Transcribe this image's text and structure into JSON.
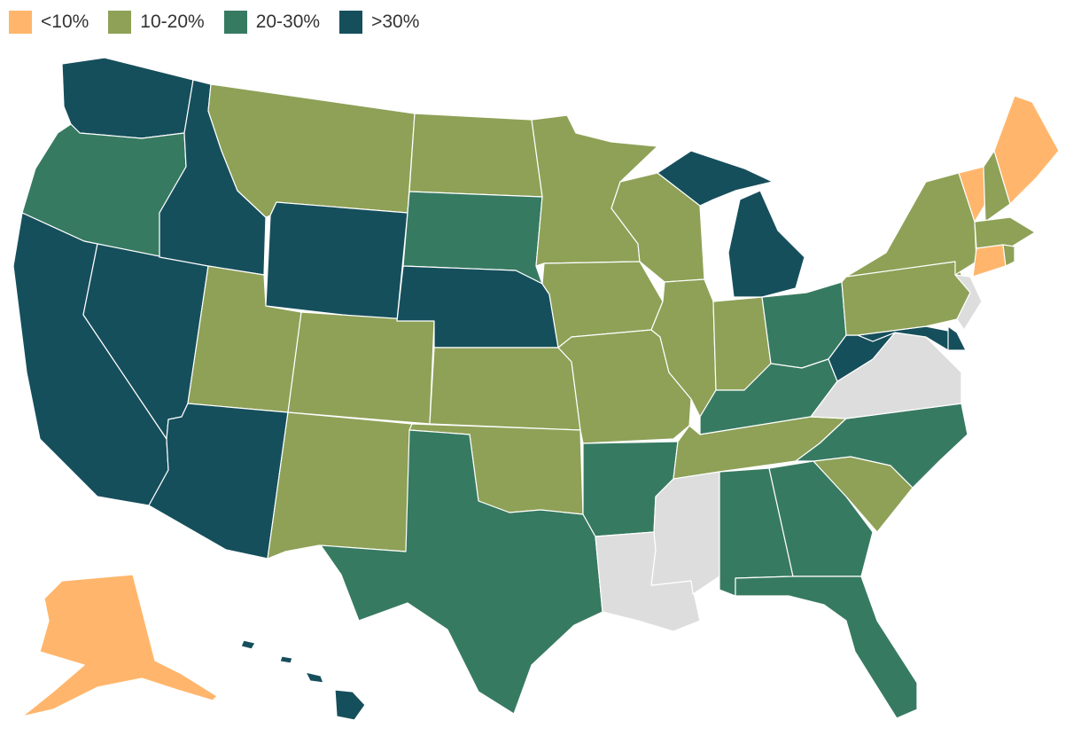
{
  "legend": {
    "items": [
      {
        "key": "lt10",
        "label": "<10%",
        "color": "#ffb66c"
      },
      {
        "key": "10-20",
        "label": "10-20%",
        "color": "#8ea157"
      },
      {
        "key": "20-30",
        "label": "20-30%",
        "color": "#377a62"
      },
      {
        "key": "gt30",
        "label": ">30%",
        "color": "#164f5c"
      }
    ],
    "no_data_color": "#dddddd"
  },
  "states": {
    "WA": "gt30",
    "OR": "20-30",
    "CA": "gt30",
    "NV": "gt30",
    "ID": "gt30",
    "MT": "10-20",
    "WY": "gt30",
    "UT": "10-20",
    "AZ": "gt30",
    "CO": "10-20",
    "NM": "10-20",
    "ND": "10-20",
    "SD": "20-30",
    "NE": "gt30",
    "KS": "10-20",
    "OK": "10-20",
    "TX": "20-30",
    "MN": "10-20",
    "IA": "10-20",
    "MO": "10-20",
    "AR": "20-30",
    "LA": "none",
    "WI": "10-20",
    "IL": "10-20",
    "MI": "gt30",
    "IN": "10-20",
    "OH": "20-30",
    "KY": "20-30",
    "TN": "10-20",
    "MS": "none",
    "AL": "20-30",
    "GA": "20-30",
    "FL": "20-30",
    "SC": "10-20",
    "NC": "20-30",
    "VA": "none",
    "WV": "gt30",
    "MD": "gt30",
    "DE": "gt30",
    "PA": "10-20",
    "NJ": "none",
    "NY": "10-20",
    "CT": "lt10",
    "RI": "10-20",
    "MA": "10-20",
    "VT": "lt10",
    "NH": "10-20",
    "ME": "lt10",
    "AK": "lt10",
    "HI": "gt30"
  }
}
